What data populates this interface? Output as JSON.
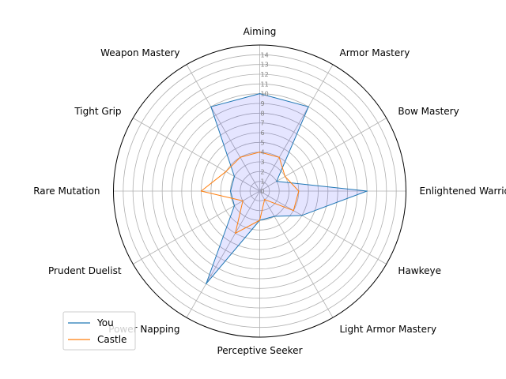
{
  "chart_data": {
    "type": "radar",
    "categories": [
      "Aiming",
      "Armor Mastery",
      "Bow Mastery",
      "Enlightened Warrior",
      "Hawkeye",
      "Light Armor Mastery",
      "Perceptive Seeker",
      "Power Napping",
      "Prudent Duelist",
      "Rare Mutation",
      "Tight Grip",
      "Weapon Mastery"
    ],
    "rlim": [
      0,
      15
    ],
    "r_ticks": [
      "0",
      "1",
      "2",
      "3",
      "4",
      "5",
      "6",
      "7",
      "8",
      "9",
      "10",
      "11",
      "12",
      "13",
      "14"
    ],
    "grid": true,
    "legend_position": "lower-left",
    "series": [
      {
        "name": "You",
        "color": "#1f77b4",
        "fill": "#0000ff",
        "values": [
          10,
          10,
          2,
          11,
          5,
          3,
          3,
          11,
          3,
          3,
          3,
          10
        ]
      },
      {
        "name": "Castle",
        "color": "#ff7f0e",
        "fill": null,
        "values": [
          4,
          4,
          3,
          4,
          4,
          1,
          3,
          5,
          2,
          6,
          4,
          4
        ]
      }
    ]
  }
}
